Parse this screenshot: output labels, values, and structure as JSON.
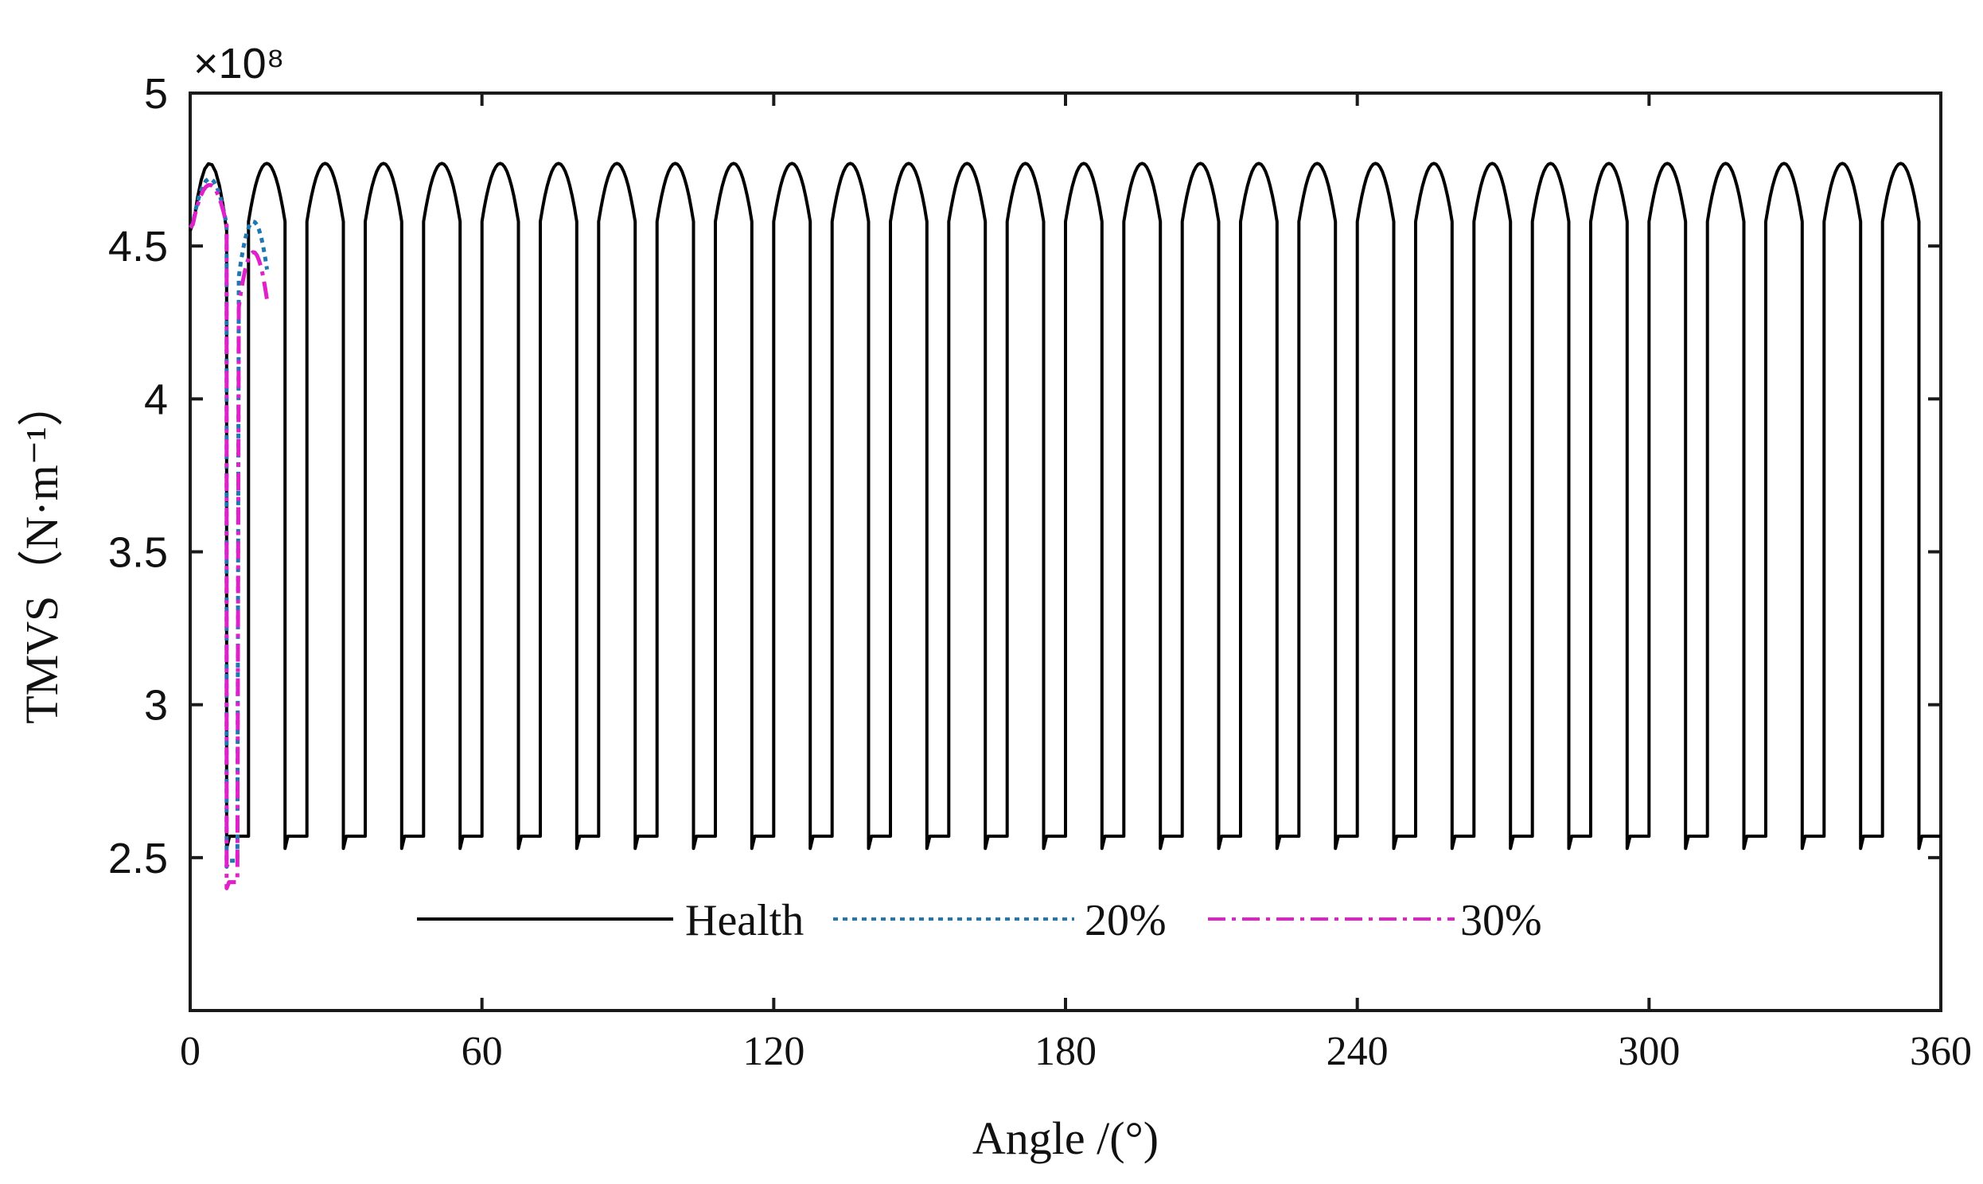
{
  "chart_data": {
    "type": "line",
    "title": "",
    "xlabel": "Angle /(°)",
    "ylabel": "TMVS（N·m⁻¹）",
    "y_exponent_label": "×10⁸",
    "xlim": [
      0,
      360
    ],
    "ylim": [
      2.0,
      5.0
    ],
    "xticks": [
      0,
      60,
      120,
      180,
      240,
      300,
      360
    ],
    "xtick_labels": [
      "0",
      "60",
      "120",
      "180",
      "240",
      "300",
      "360"
    ],
    "yticks": [
      2.5,
      3,
      3.5,
      4,
      4.5,
      5
    ],
    "ytick_labels": [
      "2.5",
      "3",
      "3.5",
      "4",
      "4.5",
      "5"
    ],
    "grid": false,
    "legend_position": "bottom-center",
    "mesh_period_deg": 12,
    "series": [
      {
        "name": "Health",
        "color": "#000000",
        "style": "solid",
        "double_tooth_max": 4.77,
        "double_tooth_min": 4.58,
        "single_tooth_min": 2.53,
        "single_tooth_max": 2.57,
        "start_value": 4.55,
        "angle_range": [
          0,
          360
        ]
      },
      {
        "name": "20%",
        "color": "#1f77b4",
        "style": "dotted",
        "double_tooth_max": 4.72,
        "second_peak": 4.58,
        "single_tooth_min": 2.47,
        "angle_range": [
          0,
          20
        ]
      },
      {
        "name": "30%",
        "color": "#e020c8",
        "style": "dashdot",
        "double_tooth_max": 4.7,
        "second_peak": 4.48,
        "single_tooth_min": 2.4,
        "angle_range": [
          0,
          20
        ]
      }
    ]
  }
}
